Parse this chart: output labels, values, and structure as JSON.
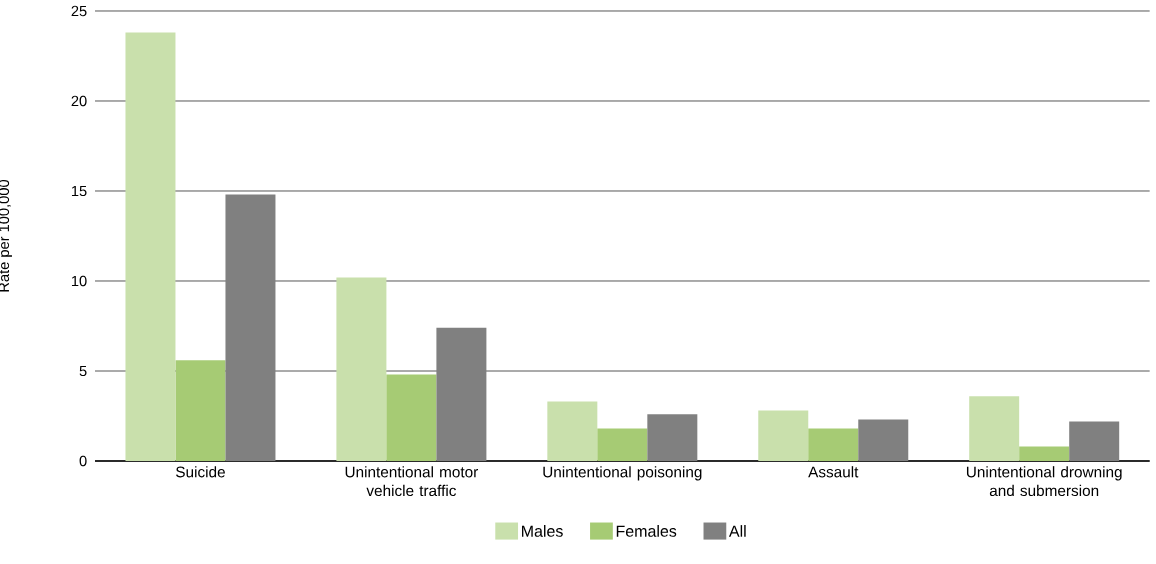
{
  "chart_data": {
    "type": "bar",
    "ylabel": "Rate per 100,000",
    "categories": [
      "Suicide",
      "Unintentional motor vehicle traffic",
      "Unintentional poisoning",
      "Assault",
      "Unintentional drowning and submersion"
    ],
    "series": [
      {
        "name": "Males",
        "color": "#c9e0ac",
        "values": [
          23.8,
          10.2,
          3.3,
          2.8,
          3.6
        ]
      },
      {
        "name": "Females",
        "color": "#a6cb74",
        "values": [
          5.6,
          4.8,
          1.8,
          1.8,
          0.8
        ]
      },
      {
        "name": "All",
        "color": "#808080",
        "values": [
          14.8,
          7.4,
          2.6,
          2.3,
          2.2
        ]
      }
    ],
    "ylim": [
      0,
      25
    ],
    "yticks": [
      0,
      5,
      10,
      15,
      20,
      25
    ],
    "grid": "y",
    "legend": "bottom"
  }
}
